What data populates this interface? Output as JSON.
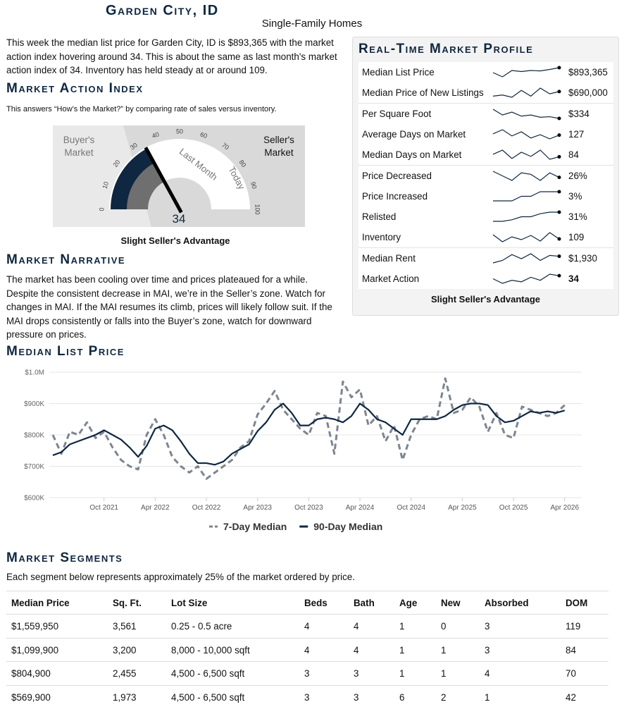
{
  "header": {
    "title": "Garden City, ID",
    "subtitle": "Single-Family Homes"
  },
  "intro": "This week the median list price for Garden City, ID is $893,365 with the market action index hovering around 34. This is about the same as last month's market action index of 34. Inventory has held steady at or around 109.",
  "mai": {
    "heading": "Market Action Index",
    "description": "This answers “How’s the Market?” by comparing rate of sales versus inventory.",
    "gauge": {
      "value": 34,
      "last_month": 34,
      "range": [
        0,
        100
      ],
      "ticks": [
        0,
        10,
        20,
        30,
        40,
        50,
        60,
        70,
        80,
        90,
        100
      ],
      "buyers_label": "Buyer's Market",
      "sellers_label": "Seller's Market",
      "last_month_label": "Last Month",
      "today_label": "Today"
    },
    "verdict": "Slight Seller's Advantage"
  },
  "narrative": {
    "heading": "Market Narrative",
    "text": "The market has been cooling over time and prices plateaued for a while. Despite the consistent decrease in MAI, we’re in the Seller’s zone. Watch for changes in MAI. If the MAI resumes its climb, prices will likely follow suit. If the MAI drops consistently or falls into the Buyer’s zone, watch for downward pressure on prices."
  },
  "profile": {
    "heading": "Real-Time Market Profile",
    "rows": [
      {
        "label": "Median List Price",
        "value_label": "$893,365",
        "trend": [
          870000,
          850000,
          880000,
          875000,
          880000,
          878000,
          885000,
          893365
        ]
      },
      {
        "label": "Median Price of New Listings",
        "value_label": "$690,000",
        "trend": [
          650000,
          660000,
          640000,
          700000,
          650000,
          720000,
          670000,
          690000
        ]
      },
      {
        "label": "Per Square Foot",
        "value_label": "$334",
        "trend": [
          350,
          340,
          345,
          338,
          340,
          336,
          337,
          334
        ]
      },
      {
        "label": "Average Days on Market",
        "value_label": "127",
        "trend": [
          130,
          140,
          125,
          135,
          120,
          128,
          118,
          127
        ]
      },
      {
        "label": "Median Days on Market",
        "value_label": "84",
        "trend": [
          90,
          100,
          80,
          95,
          85,
          100,
          78,
          84
        ]
      },
      {
        "label": "Price Decreased",
        "value_label": "26%",
        "trend": [
          30,
          27,
          24,
          29,
          28,
          24,
          29,
          26
        ]
      },
      {
        "label": "Price Increased",
        "value_label": "3%",
        "trend": [
          1,
          1,
          1,
          2,
          2,
          3,
          3,
          3
        ]
      },
      {
        "label": "Relisted",
        "value_label": "31%",
        "trend": [
          25,
          25,
          26,
          28,
          28,
          30,
          31,
          31
        ]
      },
      {
        "label": "Inventory",
        "value_label": "109",
        "trend": [
          115,
          105,
          112,
          108,
          114,
          106,
          118,
          109
        ]
      },
      {
        "label": "Median Rent",
        "value_label": "$1,930",
        "trend": [
          1850,
          1880,
          1950,
          1900,
          1960,
          1880,
          1940,
          1930
        ]
      },
      {
        "label": "Market Action",
        "value_label": "34",
        "trend": [
          32,
          29,
          31,
          30,
          33,
          31,
          35,
          34
        ]
      }
    ],
    "verdict": "Slight Seller's Advantage"
  },
  "chart_data": {
    "type": "line",
    "title": "Median List Price",
    "x": [
      "2021-04",
      "2021-05",
      "2021-06",
      "2021-07",
      "2021-08",
      "2021-09",
      "2021-10",
      "2021-11",
      "2021-12",
      "2022-01",
      "2022-02",
      "2022-03",
      "2022-04",
      "2022-05",
      "2022-06",
      "2022-07",
      "2022-08",
      "2022-09",
      "2022-10",
      "2022-11",
      "2022-12",
      "2023-01",
      "2023-02",
      "2023-03",
      "2023-04",
      "2023-05",
      "2023-06",
      "2023-07",
      "2023-08",
      "2023-09",
      "2023-10",
      "2023-11",
      "2023-12",
      "2024-01",
      "2024-02",
      "2024-03",
      "2024-04",
      "2024-05",
      "2024-06",
      "2024-07",
      "2024-08",
      "2024-09",
      "2024-10",
      "2024-11",
      "2024-12",
      "2025-01",
      "2025-02",
      "2025-03",
      "2025-04",
      "2025-05",
      "2025-06",
      "2025-07",
      "2025-08",
      "2025-09",
      "2025-10",
      "2025-11",
      "2025-12",
      "2026-01",
      "2026-02",
      "2026-03",
      "2026-04"
    ],
    "series": [
      {
        "name": "7-Day Median",
        "color": "#7d8591",
        "dashed": true,
        "values": [
          800000,
          740000,
          810000,
          800000,
          840000,
          790000,
          810000,
          760000,
          720000,
          700000,
          690000,
          800000,
          850000,
          800000,
          730000,
          700000,
          680000,
          700000,
          660000,
          680000,
          700000,
          720000,
          760000,
          780000,
          865000,
          900000,
          940000,
          880000,
          850000,
          820000,
          800000,
          870000,
          860000,
          740000,
          970000,
          920000,
          945000,
          830000,
          860000,
          780000,
          830000,
          720000,
          800000,
          850000,
          860000,
          850000,
          980000,
          870000,
          880000,
          920000,
          890000,
          810000,
          870000,
          800000,
          790000,
          890000,
          880000,
          870000,
          860000,
          870000,
          895000
        ]
      },
      {
        "name": "90-Day Median",
        "color": "#0f2740",
        "dashed": false,
        "values": [
          735000,
          745000,
          770000,
          780000,
          790000,
          800000,
          815000,
          800000,
          785000,
          760000,
          730000,
          765000,
          820000,
          830000,
          815000,
          780000,
          740000,
          710000,
          710000,
          705000,
          715000,
          740000,
          755000,
          770000,
          812000,
          840000,
          880000,
          900000,
          870000,
          830000,
          830000,
          850000,
          855000,
          850000,
          840000,
          860000,
          900000,
          880000,
          850000,
          840000,
          820000,
          800000,
          850000,
          850000,
          850000,
          850000,
          860000,
          880000,
          895000,
          900000,
          900000,
          895000,
          860000,
          840000,
          845000,
          860000,
          875000,
          870000,
          875000,
          870000,
          878000
        ]
      }
    ],
    "xlim": [
      "2021-04",
      "2026-06"
    ],
    "xticks": [
      {
        "value": "2021-10",
        "label": "Oct 2021"
      },
      {
        "value": "2022-04",
        "label": "Apr 2022"
      },
      {
        "value": "2022-10",
        "label": "Oct 2022"
      },
      {
        "value": "2023-04",
        "label": "Apr 2023"
      },
      {
        "value": "2023-10",
        "label": "Oct 2023"
      },
      {
        "value": "2024-04",
        "label": "Apr 2024"
      },
      {
        "value": "2024-10",
        "label": "Oct 2024"
      },
      {
        "value": "2025-04",
        "label": "Apr 2025"
      },
      {
        "value": "2025-10",
        "label": "Oct 2025"
      },
      {
        "value": "2026-04",
        "label": "Apr 2026"
      }
    ],
    "ylim": [
      600000,
      1000000
    ],
    "yticks": [
      {
        "value": 600000,
        "label": "$600K"
      },
      {
        "value": 700000,
        "label": "$700K"
      },
      {
        "value": 800000,
        "label": "$800K"
      },
      {
        "value": 900000,
        "label": "$900K"
      },
      {
        "value": 1000000,
        "label": "$1.0M"
      }
    ],
    "grid": true,
    "legend": "bottom"
  },
  "segments": {
    "heading": "Market Segments",
    "description": "Each segment below represents approximately 25% of the market ordered by price.",
    "columns": [
      "Median Price",
      "Sq. Ft.",
      "Lot Size",
      "Beds",
      "Bath",
      "Age",
      "New",
      "Absorbed",
      "DOM"
    ],
    "rows": [
      [
        "$1,559,950",
        "3,561",
        "0.25 - 0.5 acre",
        "4",
        "4",
        "1",
        "0",
        "3",
        "119"
      ],
      [
        "$1,099,900",
        "3,200",
        "8,000 - 10,000 sqft",
        "4",
        "4",
        "1",
        "1",
        "3",
        "84"
      ],
      [
        "$804,900",
        "2,455",
        "4,500 - 6,500 sqft",
        "3",
        "3",
        "1",
        "1",
        "4",
        "70"
      ],
      [
        "$569,900",
        "1,973",
        "4,500 - 6,500 sqft",
        "3",
        "3",
        "6",
        "2",
        "1",
        "42"
      ]
    ]
  }
}
